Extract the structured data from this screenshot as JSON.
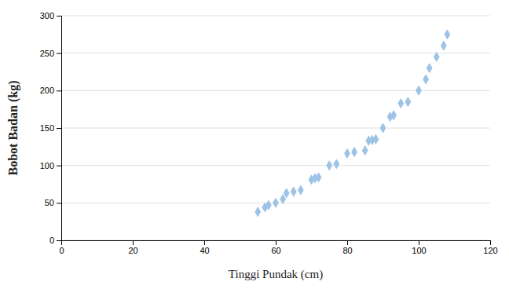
{
  "chart_data": {
    "type": "scatter",
    "x": [
      55,
      57,
      58,
      60,
      62,
      63,
      65,
      67,
      70,
      71,
      72,
      75,
      77,
      80,
      82,
      85,
      86,
      87,
      88,
      90,
      92,
      93,
      95,
      97,
      100,
      102,
      103,
      105,
      107,
      108
    ],
    "y": [
      38,
      44,
      47,
      50,
      55,
      63,
      65,
      67,
      81,
      83,
      84,
      100,
      102,
      116,
      118,
      120,
      133,
      134,
      135,
      150,
      165,
      167,
      183,
      185,
      200,
      215,
      230,
      245,
      260,
      275
    ],
    "color": "#9dc3e6",
    "marker": "diamond",
    "xlabel": "Tinggi Pundak (cm)",
    "ylabel": "Bobot Badan (kg)",
    "xlim": [
      0,
      120
    ],
    "ylim": [
      0,
      300
    ],
    "xticks": [
      0,
      20,
      40,
      60,
      80,
      100,
      120
    ],
    "yticks": [
      0,
      50,
      100,
      150,
      200,
      250,
      300
    ],
    "grid": true
  }
}
